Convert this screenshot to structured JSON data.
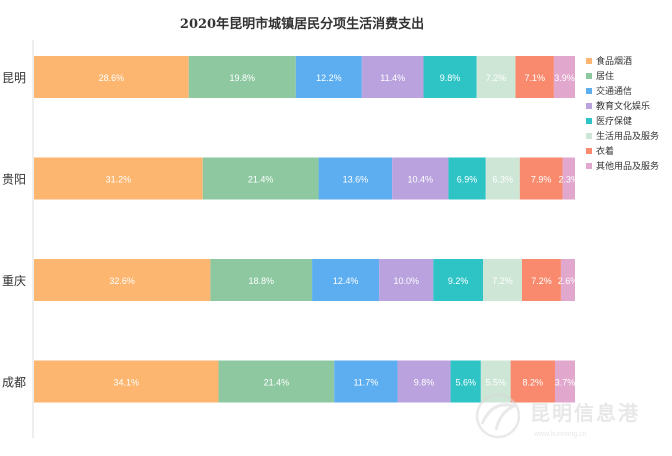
{
  "chart_data": {
    "type": "bar",
    "orientation": "horizontal",
    "stacked": true,
    "percent_stacked": true,
    "title": "2020年昆明市城镇居民分项生活消费支出",
    "categories": [
      "昆明",
      "贵阳",
      "重庆",
      "成都"
    ],
    "xlim": [
      0,
      100
    ],
    "grid": false,
    "legend_position": "right",
    "series": [
      {
        "name": "食品烟酒",
        "color": "#FDB670",
        "values": [
          28.6,
          31.2,
          32.6,
          34.1
        ]
      },
      {
        "name": "居住",
        "color": "#8DC8A0",
        "values": [
          19.8,
          21.4,
          18.8,
          21.4
        ]
      },
      {
        "name": "交通通信",
        "color": "#5CAEF0",
        "values": [
          12.2,
          13.6,
          12.4,
          11.7
        ]
      },
      {
        "name": "教育文化娱乐",
        "color": "#B9A2DE",
        "values": [
          11.4,
          10.4,
          10.0,
          9.8
        ]
      },
      {
        "name": "医疗保健",
        "color": "#2EC4C6",
        "values": [
          9.8,
          6.9,
          9.2,
          5.6
        ]
      },
      {
        "name": "生活用品及服务",
        "color": "#CDE6D6",
        "values": [
          7.2,
          6.3,
          7.2,
          5.5
        ]
      },
      {
        "name": "衣着",
        "color": "#F98A6E",
        "values": [
          7.1,
          7.9,
          7.2,
          8.2
        ]
      },
      {
        "name": "其他用品及服务",
        "color": "#E1A7CC",
        "values": [
          3.9,
          2.3,
          2.6,
          3.7
        ]
      }
    ]
  },
  "watermark": {
    "name": "昆明信息港",
    "domain": "www.kunming.cn"
  }
}
